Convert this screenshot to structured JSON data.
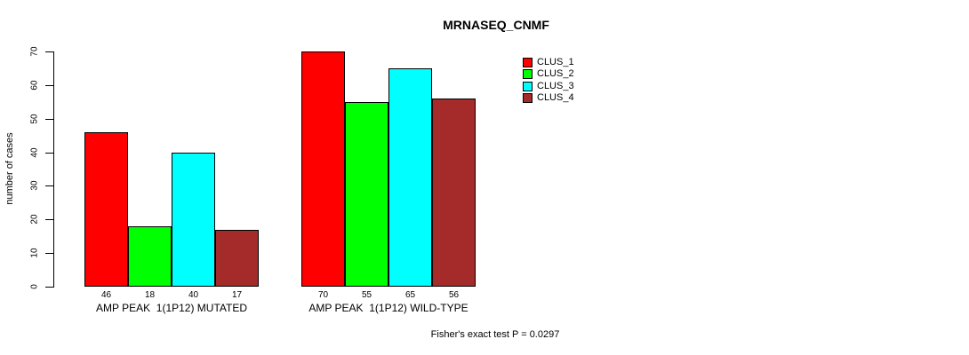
{
  "title": "MRNASEQ_CNMF",
  "ylabel": "number of cases",
  "footer": "Fisher's exact test P = 0.0297",
  "colors": {
    "clus_1": "#FF0000",
    "clus_2": "#00FF00",
    "clus_3": "#00FFFF",
    "clus_4": "#A52A2A",
    "axis": "#000000",
    "background": "#FFFFFF"
  },
  "legend": [
    {
      "label": "CLUS_1",
      "color": "#FF0000"
    },
    {
      "label": "CLUS_2",
      "color": "#00FF00"
    },
    {
      "label": "CLUS_3",
      "color": "#00FFFF"
    },
    {
      "label": "CLUS_4",
      "color": "#A52A2A"
    }
  ],
  "chart_data": {
    "type": "bar",
    "title": "MRNASEQ_CNMF",
    "ylabel": "number of cases",
    "xlabel": "",
    "ylim": [
      0,
      70
    ],
    "yticks": [
      0,
      10,
      20,
      30,
      40,
      50,
      60,
      70
    ],
    "grid": false,
    "legend_position": "right-outside-top",
    "series": [
      {
        "name": "CLUS_1",
        "color": "#FF0000",
        "values": [
          46,
          70
        ]
      },
      {
        "name": "CLUS_2",
        "color": "#00FF00",
        "values": [
          18,
          55
        ]
      },
      {
        "name": "CLUS_3",
        "color": "#00FFFF",
        "values": [
          40,
          65
        ]
      },
      {
        "name": "CLUS_4",
        "color": "#A52A2A",
        "values": [
          17,
          56
        ]
      }
    ],
    "groups": [
      {
        "label": "AMP PEAK  1(1P12) MUTATED",
        "values": [
          46,
          18,
          40,
          17
        ]
      },
      {
        "label": "AMP PEAK  1(1P12) WILD-TYPE",
        "values": [
          70,
          55,
          65,
          56
        ]
      }
    ],
    "bar_value_labels_shown": true,
    "annotation": "Fisher's exact test P = 0.0297"
  }
}
